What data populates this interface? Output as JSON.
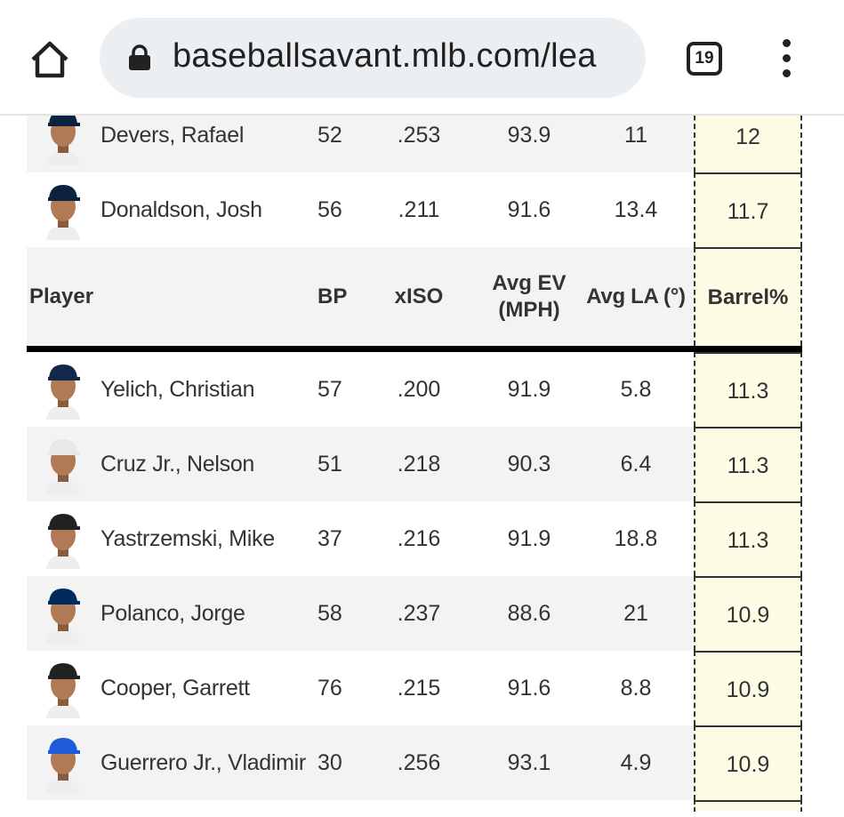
{
  "browser": {
    "url": "baseballsavant.mlb.com/lea",
    "tab_count": "19"
  },
  "header": {
    "player": "Player",
    "col1": "BP",
    "xiso": "xISO",
    "avg_ev": "Avg EV (MPH)",
    "avg_la": "Avg LA (°)",
    "barrel": "Barrel%"
  },
  "rows_top": [
    {
      "name": "Devers, Rafael",
      "c1": "52",
      "xiso": ".253",
      "ev": "93.9",
      "la": "11",
      "barrel": "12",
      "cap": "#0c2340"
    },
    {
      "name": "Donaldson, Josh",
      "c1": "56",
      "xiso": ".211",
      "ev": "91.6",
      "la": "13.4",
      "barrel": "11.7",
      "cap": "#0c2340"
    }
  ],
  "rows": [
    {
      "name": "Yelich, Christian",
      "c1": "57",
      "xiso": ".200",
      "ev": "91.9",
      "la": "5.8",
      "barrel": "11.3",
      "cap": "#12284b"
    },
    {
      "name": "Cruz Jr., Nelson",
      "c1": "51",
      "xiso": ".218",
      "ev": "90.3",
      "la": "6.4",
      "barrel": "11.3",
      "cap": "#e8e8e8"
    },
    {
      "name": "Yastrzemski, Mike",
      "c1": "37",
      "xiso": ".216",
      "ev": "91.9",
      "la": "18.8",
      "barrel": "11.3",
      "cap": "#222222"
    },
    {
      "name": "Polanco, Jorge",
      "c1": "58",
      "xiso": ".237",
      "ev": "88.6",
      "la": "21",
      "barrel": "10.9",
      "cap": "#002b5c"
    },
    {
      "name": "Cooper, Garrett",
      "c1": "76",
      "xiso": ".215",
      "ev": "91.6",
      "la": "8.8",
      "barrel": "10.9",
      "cap": "#222222"
    },
    {
      "name": "Guerrero Jr., Vladimir",
      "c1": "30",
      "xiso": ".256",
      "ev": "93.1",
      "la": "4.9",
      "barrel": "10.9",
      "cap": "#1d5bd8"
    }
  ]
}
